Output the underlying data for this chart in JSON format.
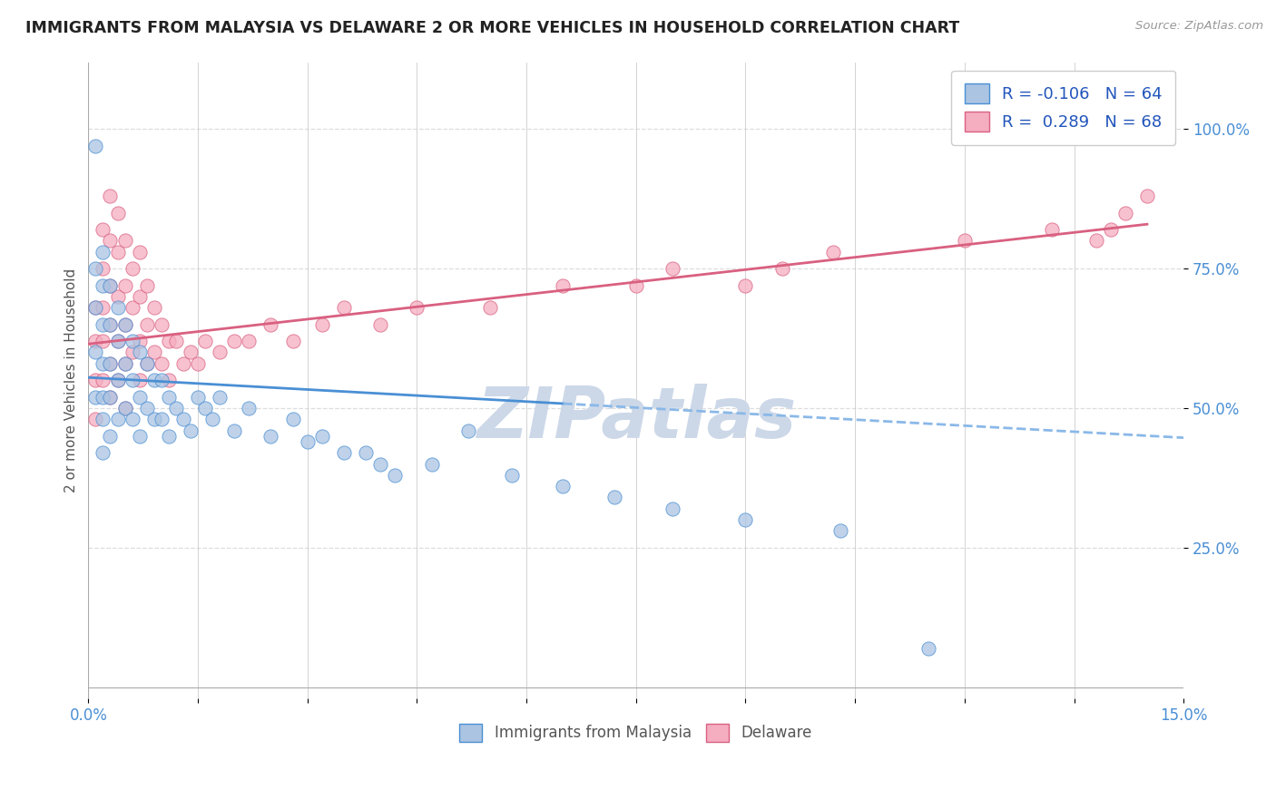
{
  "title": "IMMIGRANTS FROM MALAYSIA VS DELAWARE 2 OR MORE VEHICLES IN HOUSEHOLD CORRELATION CHART",
  "source_text": "Source: ZipAtlas.com",
  "ylabel": "2 or more Vehicles in Household",
  "xlim": [
    0.0,
    0.15
  ],
  "ylim": [
    -0.02,
    1.12
  ],
  "yticks": [
    0.25,
    0.5,
    0.75,
    1.0
  ],
  "ytick_labels": [
    "25.0%",
    "50.0%",
    "75.0%",
    "100.0%"
  ],
  "xticks": [
    0.0,
    0.015,
    0.03,
    0.045,
    0.06,
    0.075,
    0.09,
    0.105,
    0.12,
    0.135,
    0.15
  ],
  "xtick_labels": [
    "0.0%",
    "",
    "",
    "",
    "",
    "",
    "",
    "",
    "",
    "",
    "15.0%"
  ],
  "blue_R": -0.106,
  "blue_N": 64,
  "pink_R": 0.289,
  "pink_N": 68,
  "blue_color": "#aac4e2",
  "pink_color": "#f5adc0",
  "blue_line_color": "#4a8fd4",
  "pink_line_color": "#d96080",
  "blue_line_dashed_color": "#8ab8e8",
  "legend_R_color": "#2255bb",
  "title_color": "#222222",
  "watermark_color": "#ccd8e8",
  "background_color": "#ffffff",
  "grid_color": "#cccccc",
  "grid_dashed_color": "#dddddd",
  "blue_intercept": 0.555,
  "blue_slope": -0.72,
  "pink_intercept": 0.615,
  "pink_slope": 1.48,
  "blue_scatter_x": [
    0.001,
    0.001,
    0.001,
    0.001,
    0.001,
    0.002,
    0.002,
    0.002,
    0.002,
    0.002,
    0.002,
    0.002,
    0.003,
    0.003,
    0.003,
    0.003,
    0.003,
    0.004,
    0.004,
    0.004,
    0.004,
    0.005,
    0.005,
    0.005,
    0.006,
    0.006,
    0.006,
    0.007,
    0.007,
    0.007,
    0.008,
    0.008,
    0.009,
    0.009,
    0.01,
    0.01,
    0.011,
    0.011,
    0.012,
    0.013,
    0.014,
    0.015,
    0.016,
    0.017,
    0.018,
    0.02,
    0.022,
    0.025,
    0.028,
    0.03,
    0.032,
    0.035,
    0.038,
    0.04,
    0.042,
    0.047,
    0.052,
    0.058,
    0.065,
    0.072,
    0.08,
    0.09,
    0.103,
    0.115
  ],
  "blue_scatter_y": [
    0.97,
    0.75,
    0.68,
    0.6,
    0.52,
    0.78,
    0.72,
    0.65,
    0.58,
    0.52,
    0.48,
    0.42,
    0.72,
    0.65,
    0.58,
    0.52,
    0.45,
    0.68,
    0.62,
    0.55,
    0.48,
    0.65,
    0.58,
    0.5,
    0.62,
    0.55,
    0.48,
    0.6,
    0.52,
    0.45,
    0.58,
    0.5,
    0.55,
    0.48,
    0.55,
    0.48,
    0.52,
    0.45,
    0.5,
    0.48,
    0.46,
    0.52,
    0.5,
    0.48,
    0.52,
    0.46,
    0.5,
    0.45,
    0.48,
    0.44,
    0.45,
    0.42,
    0.42,
    0.4,
    0.38,
    0.4,
    0.46,
    0.38,
    0.36,
    0.34,
    0.32,
    0.3,
    0.28,
    0.07
  ],
  "pink_scatter_x": [
    0.001,
    0.001,
    0.001,
    0.001,
    0.002,
    0.002,
    0.002,
    0.002,
    0.002,
    0.003,
    0.003,
    0.003,
    0.003,
    0.003,
    0.003,
    0.004,
    0.004,
    0.004,
    0.004,
    0.004,
    0.005,
    0.005,
    0.005,
    0.005,
    0.005,
    0.006,
    0.006,
    0.006,
    0.007,
    0.007,
    0.007,
    0.007,
    0.008,
    0.008,
    0.008,
    0.009,
    0.009,
    0.01,
    0.01,
    0.011,
    0.011,
    0.012,
    0.013,
    0.014,
    0.015,
    0.016,
    0.018,
    0.02,
    0.022,
    0.025,
    0.028,
    0.032,
    0.035,
    0.04,
    0.045,
    0.055,
    0.065,
    0.075,
    0.08,
    0.09,
    0.095,
    0.102,
    0.12,
    0.132,
    0.138,
    0.14,
    0.142,
    0.145
  ],
  "pink_scatter_y": [
    0.68,
    0.62,
    0.55,
    0.48,
    0.82,
    0.75,
    0.68,
    0.62,
    0.55,
    0.88,
    0.8,
    0.72,
    0.65,
    0.58,
    0.52,
    0.85,
    0.78,
    0.7,
    0.62,
    0.55,
    0.8,
    0.72,
    0.65,
    0.58,
    0.5,
    0.75,
    0.68,
    0.6,
    0.78,
    0.7,
    0.62,
    0.55,
    0.72,
    0.65,
    0.58,
    0.68,
    0.6,
    0.65,
    0.58,
    0.62,
    0.55,
    0.62,
    0.58,
    0.6,
    0.58,
    0.62,
    0.6,
    0.62,
    0.62,
    0.65,
    0.62,
    0.65,
    0.68,
    0.65,
    0.68,
    0.68,
    0.72,
    0.72,
    0.75,
    0.72,
    0.75,
    0.78,
    0.8,
    0.82,
    0.8,
    0.82,
    0.85,
    0.88
  ]
}
